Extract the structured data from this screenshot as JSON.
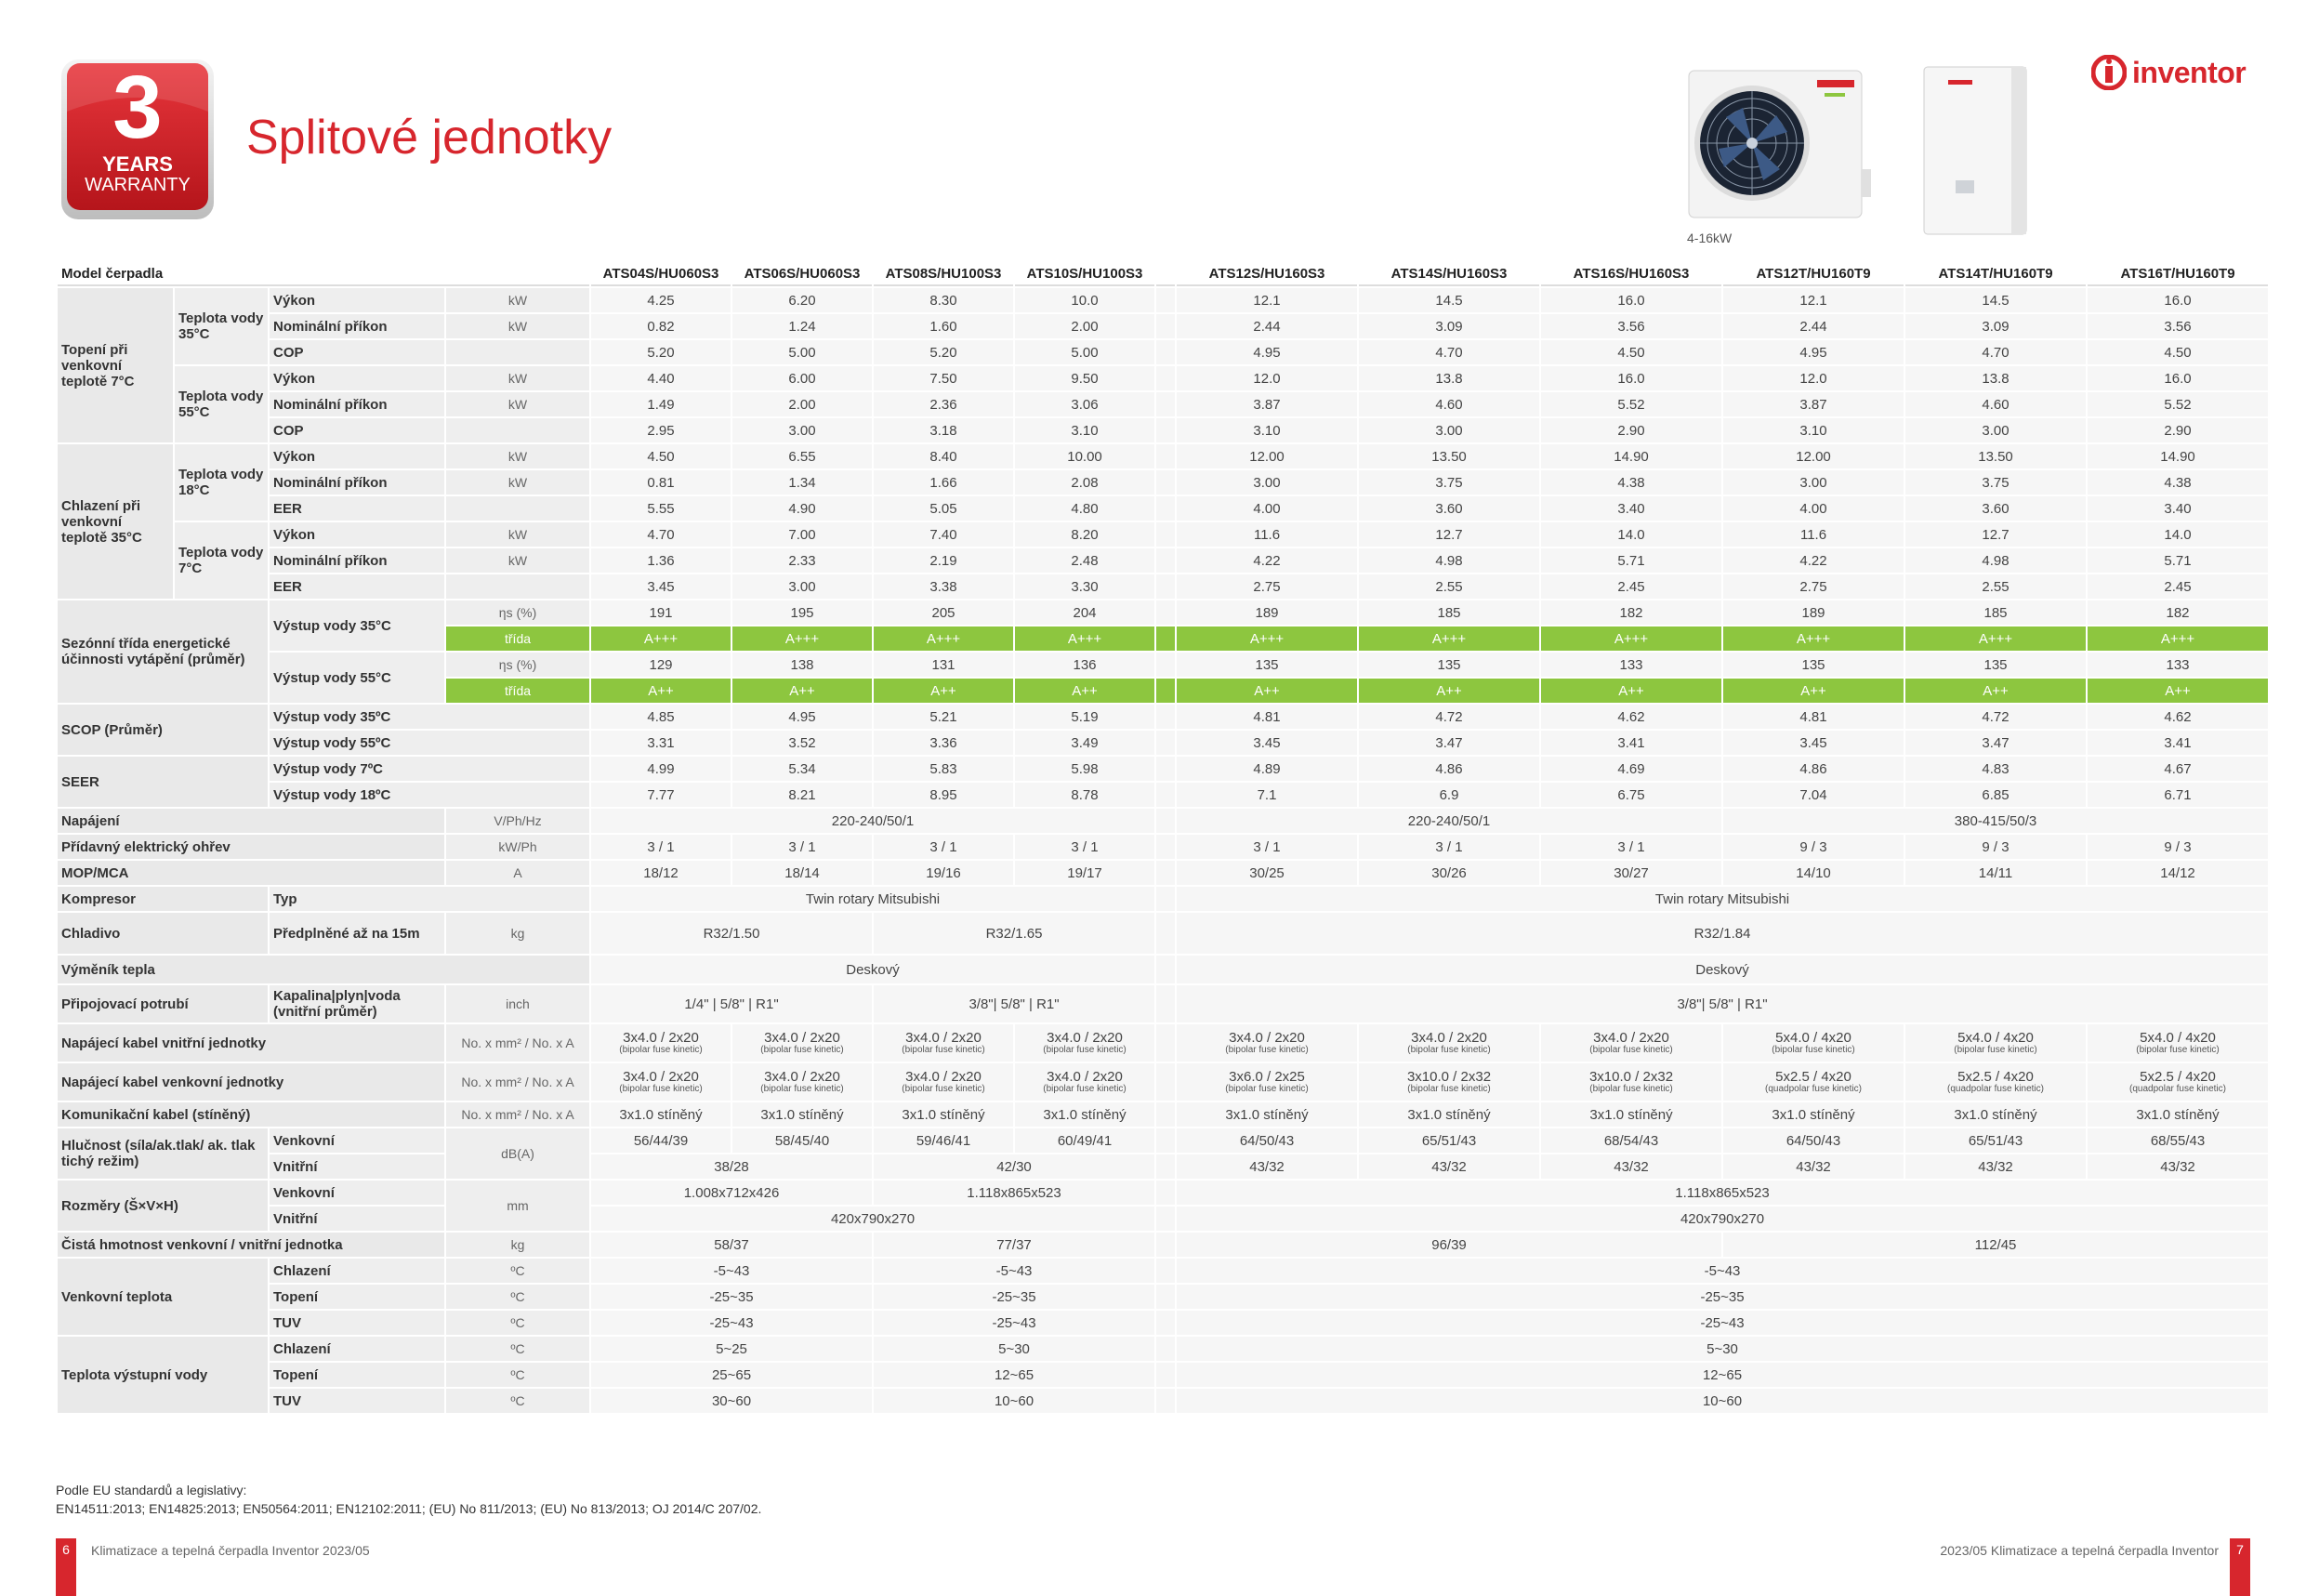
{
  "header": {
    "title": "Splitové jednotky",
    "warranty": {
      "number": "3",
      "line1": "YEARS",
      "line2": "WARRANTY"
    },
    "unit_caption": "4-16kW",
    "brand": "inventor",
    "colors": {
      "accent": "#d7262d",
      "energy_class": "#8dc63f"
    }
  },
  "table": {
    "header": {
      "label": "Model čerpadla",
      "models": [
        "ATS04S/HU060S3",
        "ATS06S/HU060S3",
        "ATS08S/HU100S3",
        "ATS10S/HU100S3",
        "ATS12S/HU160S3",
        "ATS14S/HU160S3",
        "ATS16S/HU160S3",
        "ATS12T/HU160T9",
        "ATS14T/HU160T9",
        "ATS16T/HU160T9"
      ]
    },
    "heating": {
      "label": "Topení při venkovní teplotě 7°C",
      "w35": {
        "label": "Teplota vody 35°C",
        "rows": [
          {
            "name": "Výkon",
            "unit": "kW",
            "values": [
              "4.25",
              "6.20",
              "8.30",
              "10.0",
              "12.1",
              "14.5",
              "16.0",
              "12.1",
              "14.5",
              "16.0"
            ]
          },
          {
            "name": "Nominální příkon",
            "unit": "kW",
            "values": [
              "0.82",
              "1.24",
              "1.60",
              "2.00",
              "2.44",
              "3.09",
              "3.56",
              "2.44",
              "3.09",
              "3.56"
            ]
          },
          {
            "name": "COP",
            "unit": "",
            "values": [
              "5.20",
              "5.00",
              "5.20",
              "5.00",
              "4.95",
              "4.70",
              "4.50",
              "4.95",
              "4.70",
              "4.50"
            ]
          }
        ]
      },
      "w55": {
        "label": "Teplota vody 55°C",
        "rows": [
          {
            "name": "Výkon",
            "unit": "kW",
            "values": [
              "4.40",
              "6.00",
              "7.50",
              "9.50",
              "12.0",
              "13.8",
              "16.0",
              "12.0",
              "13.8",
              "16.0"
            ]
          },
          {
            "name": "Nominální příkon",
            "unit": "kW",
            "values": [
              "1.49",
              "2.00",
              "2.36",
              "3.06",
              "3.87",
              "4.60",
              "5.52",
              "3.87",
              "4.60",
              "5.52"
            ]
          },
          {
            "name": "COP",
            "unit": "",
            "values": [
              "2.95",
              "3.00",
              "3.18",
              "3.10",
              "3.10",
              "3.00",
              "2.90",
              "3.10",
              "3.00",
              "2.90"
            ]
          }
        ]
      }
    },
    "cooling": {
      "label": "Chlazení při venkovní teplotě 35°C",
      "w18": {
        "label": "Teplota vody 18°C",
        "rows": [
          {
            "name": "Výkon",
            "unit": "kW",
            "values": [
              "4.50",
              "6.55",
              "8.40",
              "10.00",
              "12.00",
              "13.50",
              "14.90",
              "12.00",
              "13.50",
              "14.90"
            ]
          },
          {
            "name": "Nominální příkon",
            "unit": "kW",
            "values": [
              "0.81",
              "1.34",
              "1.66",
              "2.08",
              "3.00",
              "3.75",
              "4.38",
              "3.00",
              "3.75",
              "4.38"
            ]
          },
          {
            "name": "EER",
            "unit": "",
            "values": [
              "5.55",
              "4.90",
              "5.05",
              "4.80",
              "4.00",
              "3.60",
              "3.40",
              "4.00",
              "3.60",
              "3.40"
            ]
          }
        ]
      },
      "w7": {
        "label": "Teplota vody 7°C",
        "rows": [
          {
            "name": "Výkon",
            "unit": "kW",
            "values": [
              "4.70",
              "7.00",
              "7.40",
              "8.20",
              "11.6",
              "12.7",
              "14.0",
              "11.6",
              "12.7",
              "14.0"
            ]
          },
          {
            "name": "Nominální příkon",
            "unit": "kW",
            "values": [
              "1.36",
              "2.33",
              "2.19",
              "2.48",
              "4.22",
              "4.98",
              "5.71",
              "4.22",
              "4.98",
              "5.71"
            ]
          },
          {
            "name": "EER",
            "unit": "",
            "values": [
              "3.45",
              "3.00",
              "3.38",
              "3.30",
              "2.75",
              "2.55",
              "2.45",
              "2.75",
              "2.55",
              "2.45"
            ]
          }
        ]
      }
    },
    "seasonal": {
      "label": "Sezónní třída energetické účinnosti vytápění (průměr)",
      "o35": {
        "label": "Výstup vody  35°C",
        "eta_unit": "ηs (%)",
        "eta": [
          "191",
          "195",
          "205",
          "204",
          "189",
          "185",
          "182",
          "189",
          "185",
          "182"
        ],
        "class_unit": "třída",
        "class": [
          "A+++",
          "A+++",
          "A+++",
          "A+++",
          "A+++",
          "A+++",
          "A+++",
          "A+++",
          "A+++",
          "A+++"
        ]
      },
      "o55": {
        "label": "Výstup vody  55°C",
        "eta_unit": "ηs (%)",
        "eta": [
          "129",
          "138",
          "131",
          "136",
          "135",
          "135",
          "133",
          "135",
          "135",
          "133"
        ],
        "class_unit": "třída",
        "class": [
          "A++",
          "A++",
          "A++",
          "A++",
          "A++",
          "A++",
          "A++",
          "A++",
          "A++",
          "A++"
        ]
      }
    },
    "scop": {
      "label": "SCOP (Průměr)",
      "rows": [
        {
          "name": "Výstup vody  35ºC",
          "values": [
            "4.85",
            "4.95",
            "5.21",
            "5.19",
            "4.81",
            "4.72",
            "4.62",
            "4.81",
            "4.72",
            "4.62"
          ]
        },
        {
          "name": "Výstup vody  55ºC",
          "values": [
            "3.31",
            "3.52",
            "3.36",
            "3.49",
            "3.45",
            "3.47",
            "3.41",
            "3.45",
            "3.47",
            "3.41"
          ]
        }
      ]
    },
    "seer": {
      "label": "SEER",
      "rows": [
        {
          "name": "Výstup vody  7ºC",
          "values": [
            "4.99",
            "5.34",
            "5.83",
            "5.98",
            "4.89",
            "4.86",
            "4.69",
            "4.86",
            "4.83",
            "4.67"
          ]
        },
        {
          "name": "Výstup vody  18ºC",
          "values": [
            "7.77",
            "8.21",
            "8.95",
            "8.78",
            "7.1",
            "6.9",
            "6.75",
            "7.04",
            "6.85",
            "6.71"
          ]
        }
      ]
    },
    "power": {
      "label": "Napájení",
      "unit": "V/Ph/Hz",
      "values": [
        "220-240/50/1",
        "220-240/50/1",
        "380-415/50/3"
      ]
    },
    "heater": {
      "label": "Přídavný elektrický ohřev",
      "unit": "kW/Ph",
      "values": [
        "3 / 1",
        "3 / 1",
        "3 / 1",
        "3 / 1",
        "3 / 1",
        "3 / 1",
        "3 / 1",
        "9 / 3",
        "9 / 3",
        "9 / 3"
      ]
    },
    "mop": {
      "label": "MOP/MCA",
      "unit": "A",
      "values": [
        "18/12",
        "18/14",
        "19/16",
        "19/17",
        "30/25",
        "30/26",
        "30/27",
        "14/10",
        "14/11",
        "14/12"
      ]
    },
    "compressor": {
      "label": "Kompresor",
      "sub": "Typ",
      "values": [
        "Twin rotary Mitsubishi",
        "Twin rotary Mitsubishi"
      ]
    },
    "refrigerant": {
      "label": "Chladivo",
      "sub": "Předplněné až na 15m",
      "unit": "kg",
      "values": [
        "R32/1.50",
        "R32/1.65",
        "R32/1.84"
      ]
    },
    "exchanger": {
      "label": "Výměník tepla",
      "values": [
        "Deskový",
        "Deskový"
      ]
    },
    "piping": {
      "label": "Připojovací potrubí",
      "sub": "Kapalina|plyn|voda (vnitřní průměr)",
      "unit": "inch",
      "values": [
        "1/4\" | 5/8\" | R1\"",
        "3/8\"| 5/8\" | R1\"",
        "3/8\"| 5/8\" | R1\""
      ]
    },
    "cable_in": {
      "label": "Napájecí kabel vnitřní jednotky",
      "unit": "No. x mm² / No. x A",
      "values": [
        [
          "3x4.0 / 2x20",
          "(bipolar fuse kinetic)"
        ],
        [
          "3x4.0 / 2x20",
          "(bipolar fuse kinetic)"
        ],
        [
          "3x4.0 / 2x20",
          "(bipolar fuse kinetic)"
        ],
        [
          "3x4.0 / 2x20",
          "(bipolar fuse kinetic)"
        ],
        [
          "3x4.0 / 2x20",
          "(bipolar fuse kinetic)"
        ],
        [
          "3x4.0 / 2x20",
          "(bipolar fuse kinetic)"
        ],
        [
          "3x4.0 / 2x20",
          "(bipolar fuse kinetic)"
        ],
        [
          "5x4.0 / 4x20",
          "(bipolar fuse kinetic)"
        ],
        [
          "5x4.0 / 4x20",
          "(bipolar fuse kinetic)"
        ],
        [
          "5x4.0 / 4x20",
          "(bipolar fuse kinetic)"
        ]
      ]
    },
    "cable_out": {
      "label": "Napájecí kabel venkovní jednotky",
      "unit": "No. x mm² / No. x A",
      "values": [
        [
          "3x4.0 / 2x20",
          "(bipolar fuse kinetic)"
        ],
        [
          "3x4.0 / 2x20",
          "(bipolar fuse kinetic)"
        ],
        [
          "3x4.0 / 2x20",
          "(bipolar fuse kinetic)"
        ],
        [
          "3x4.0 / 2x20",
          "(bipolar fuse kinetic)"
        ],
        [
          "3x6.0 / 2x25",
          "(bipolar fuse kinetic)"
        ],
        [
          "3x10.0 / 2x32",
          "(bipolar fuse kinetic)"
        ],
        [
          "3x10.0 / 2x32",
          "(bipolar fuse kinetic)"
        ],
        [
          "5x2.5 / 4x20",
          "(quadpolar fuse kinetic)"
        ],
        [
          "5x2.5 / 4x20",
          "(quadpolar fuse kinetic)"
        ],
        [
          "5x2.5 / 4x20",
          "(quadpolar fuse kinetic)"
        ]
      ]
    },
    "comm": {
      "label": "Komunikační kabel (stíněný)",
      "unit": "No. x mm² / No. x A",
      "values": [
        "3x1.0 stíněný",
        "3x1.0 stíněný",
        "3x1.0 stíněný",
        "3x1.0 stíněný",
        "3x1.0 stíněný",
        "3x1.0 stíněný",
        "3x1.0 stíněný",
        "3x1.0 stíněný",
        "3x1.0 stíněný",
        "3x1.0 stíněný"
      ]
    },
    "noise": {
      "label": "Hlučnost (síla/ak.tlak/ ak. tlak tichý režim)",
      "unit": "dB(A)",
      "outdoor": {
        "name": "Venkovní",
        "values": [
          "56/44/39",
          "58/45/40",
          "59/46/41",
          "60/49/41",
          "64/50/43",
          "65/51/43",
          "68/54/43",
          "64/50/43",
          "65/51/43",
          "68/55/43"
        ]
      },
      "indoor": {
        "name": "Vnitřní",
        "values": [
          "38/28",
          "42/30",
          "43/32",
          "43/32",
          "43/32",
          "43/32",
          "43/32",
          "43/32"
        ]
      }
    },
    "dims": {
      "label": "Rozměry (Š×V×H)",
      "unit": "mm",
      "outdoor": {
        "name": "Venkovní",
        "values": [
          "1.008x712x426",
          "1.118x865x523",
          "1.118x865x523"
        ]
      },
      "indoor": {
        "name": "Vnitřní",
        "values": [
          "420x790x270",
          "420x790x270"
        ]
      }
    },
    "weight": {
      "label": "Čistá hmotnost venkovní / vnitřní jednotka",
      "unit": "kg",
      "values": [
        "58/37",
        "77/37",
        "96/39",
        "112/45"
      ]
    },
    "outtemp": {
      "label": "Venkovní teplota",
      "rows": [
        {
          "name": "Chlazení",
          "unit": "ºC",
          "values": [
            "-5~43",
            "-5~43",
            "-5~43"
          ]
        },
        {
          "name": "Topení",
          "unit": "ºC",
          "values": [
            "-25~35",
            "-25~35",
            "-25~35"
          ]
        },
        {
          "name": "TUV",
          "unit": "ºC",
          "values": [
            "-25~43",
            "-25~43",
            "-25~43"
          ]
        }
      ]
    },
    "watertemp": {
      "label": "Teplota výstupní vody",
      "rows": [
        {
          "name": "Chlazení",
          "unit": "ºC",
          "values": [
            "5~25",
            "5~30",
            "5~30"
          ]
        },
        {
          "name": "Topení",
          "unit": "ºC",
          "values": [
            "25~65",
            "12~65",
            "12~65"
          ]
        },
        {
          "name": "TUV",
          "unit": "ºC",
          "values": [
            "30~60",
            "10~60",
            "10~60"
          ]
        }
      ]
    }
  },
  "footer": {
    "note1": "Podle EU standardů a legislativy:",
    "note2": "EN14511:2013; EN14825:2013; EN50564:2011; EN12102:2011; (EU) No 811/2013; (EU) No 813/2013; OJ 2014/C 207/02.",
    "left_page": "6",
    "left_text": "Klimatizace a tepelná čerpadla Inventor 2023/05",
    "right_page": "7",
    "right_text": "2023/05 Klimatizace a tepelná čerpadla Inventor"
  }
}
